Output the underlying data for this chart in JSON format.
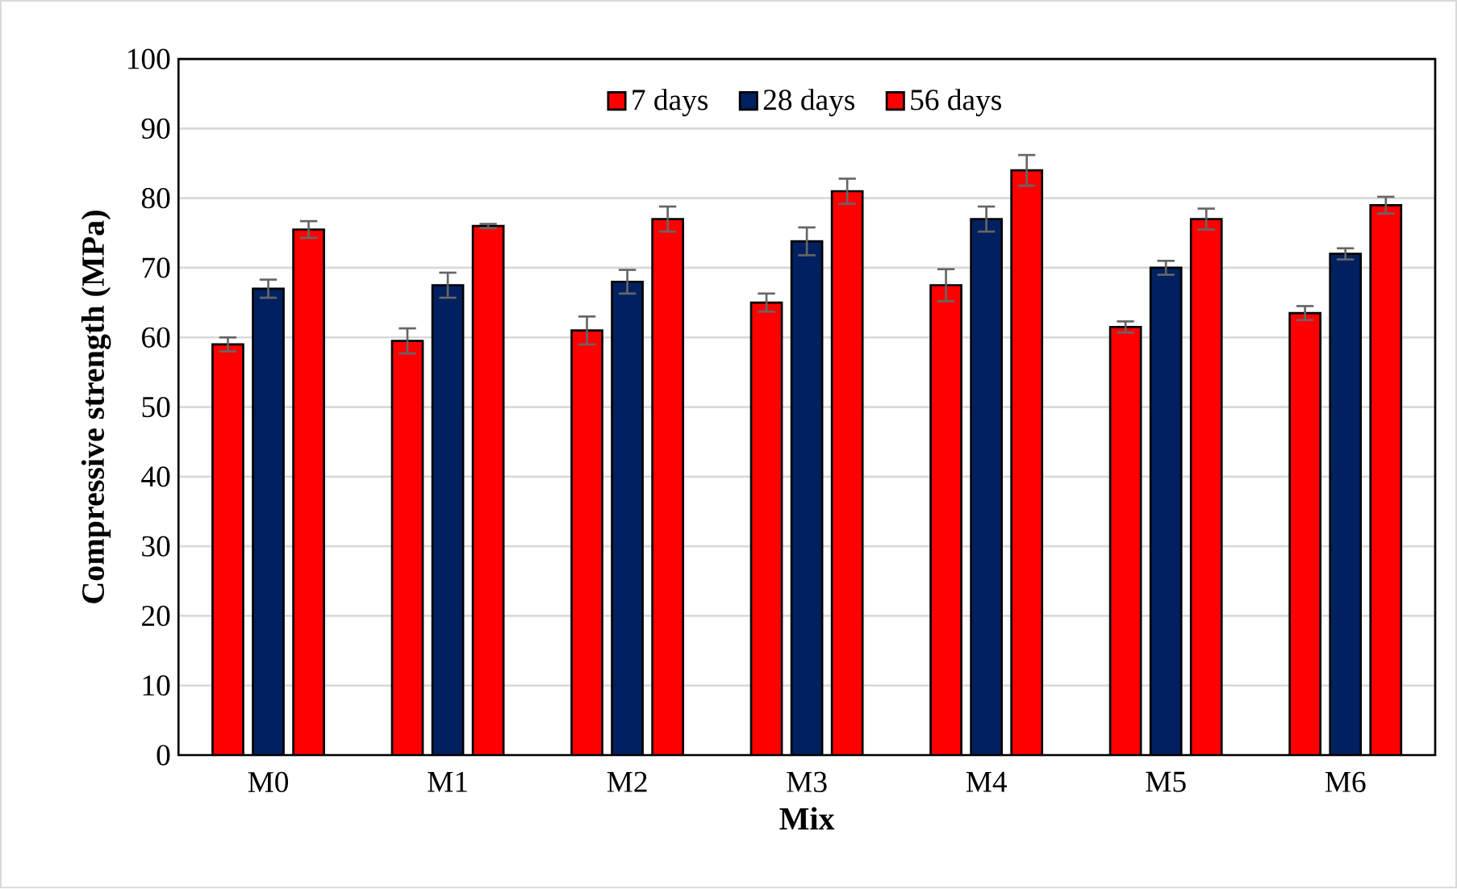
{
  "chart_data": {
    "type": "bar",
    "xlabel": "Mix",
    "ylabel": "Compressive strength (MPa)",
    "categories": [
      "M0",
      "M1",
      "M2",
      "M3",
      "M4",
      "M5",
      "M6"
    ],
    "series": [
      {
        "name": "7 days",
        "color": "#ff0000",
        "values": [
          59,
          59.5,
          61,
          65,
          67.5,
          61.5,
          63.5
        ],
        "errors": [
          1,
          1.8,
          2,
          1.3,
          2.3,
          0.8,
          1
        ]
      },
      {
        "name": "28 days",
        "color": "#002060",
        "values": [
          67,
          67.5,
          68,
          73.8,
          77,
          70,
          72
        ],
        "errors": [
          1.3,
          1.8,
          1.7,
          2,
          1.8,
          1,
          0.8
        ]
      },
      {
        "name": "56 days",
        "color": "#ff0000",
        "values": [
          75.5,
          76,
          77,
          81,
          84,
          77,
          79
        ],
        "errors": [
          1.2,
          0.3,
          1.8,
          1.8,
          2.2,
          1.5,
          1.2
        ]
      }
    ],
    "ylim": [
      0,
      100
    ],
    "yticks": [
      0,
      10,
      20,
      30,
      40,
      50,
      60,
      70,
      80,
      90,
      100
    ],
    "grid": "y",
    "legend": "top"
  }
}
